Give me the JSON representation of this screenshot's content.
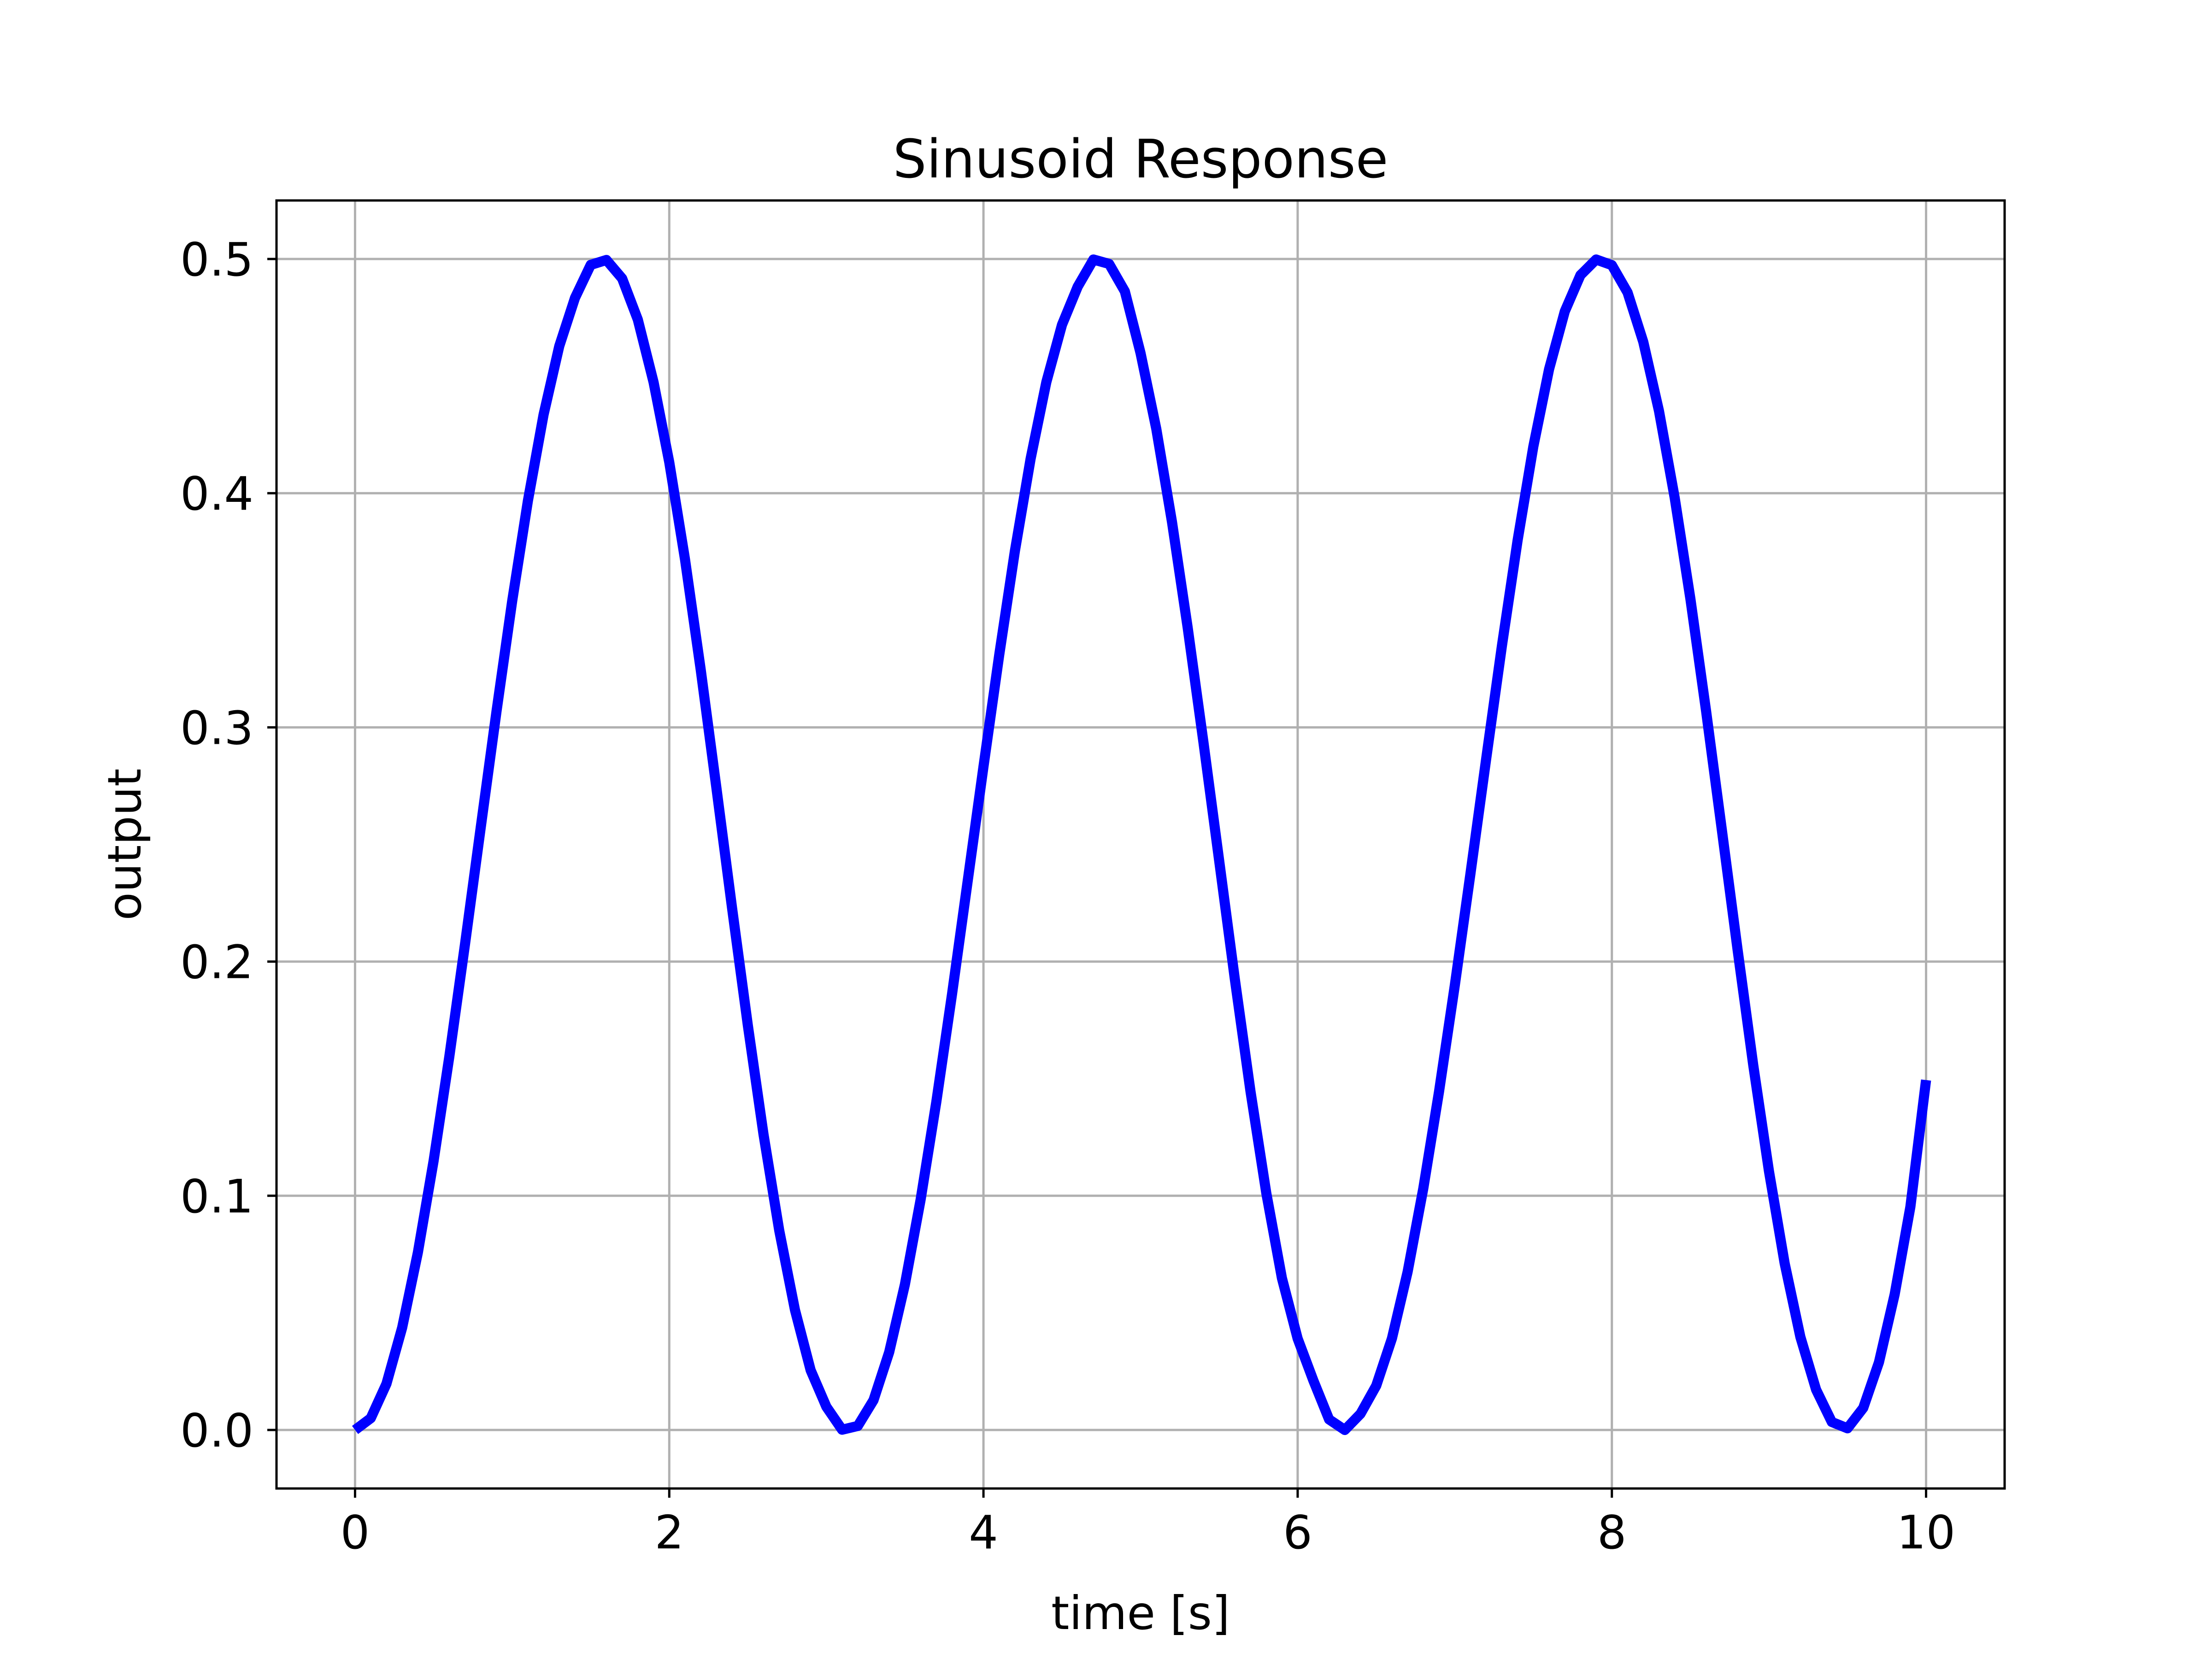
{
  "chart_data": {
    "type": "line",
    "title": "Sinusoid Response",
    "xlabel": "time [s]",
    "ylabel": "output",
    "xlim": [
      -0.5,
      10.5
    ],
    "ylim": [
      -0.025,
      0.525
    ],
    "xticks": [
      0,
      2,
      4,
      6,
      8,
      10
    ],
    "xtick_labels": [
      "0",
      "2",
      "4",
      "6",
      "8",
      "10"
    ],
    "yticks": [
      0.0,
      0.1,
      0.2,
      0.3,
      0.4,
      0.5
    ],
    "ytick_labels": [
      "0.0",
      "0.1",
      "0.2",
      "0.3",
      "0.4",
      "0.5"
    ],
    "grid": true,
    "series": [
      {
        "color": "#0000ff",
        "x": [
          0.0,
          0.1,
          0.2,
          0.3,
          0.4,
          0.5,
          0.6,
          0.7,
          0.8,
          0.9,
          1.0,
          1.1,
          1.2,
          1.3,
          1.4,
          1.5,
          1.6,
          1.7,
          1.8,
          1.9,
          2.0,
          2.1,
          2.2,
          2.3,
          2.4,
          2.5,
          2.6,
          2.7,
          2.8,
          2.9,
          3.0,
          3.1,
          3.2,
          3.3,
          3.4,
          3.5,
          3.6,
          3.7,
          3.8,
          3.9,
          4.0,
          4.1,
          4.2,
          4.3,
          4.4,
          4.5,
          4.6,
          4.7,
          4.8,
          4.9,
          5.0,
          5.1,
          5.2,
          5.3,
          5.4,
          5.5,
          5.6,
          5.7,
          5.8,
          5.9,
          6.0,
          6.1,
          6.2,
          6.3,
          6.4,
          6.5,
          6.6,
          6.7,
          6.8,
          6.9,
          7.0,
          7.1,
          7.2,
          7.3,
          7.4,
          7.5,
          7.6,
          7.7,
          7.8,
          7.9,
          8.0,
          8.1,
          8.2,
          8.3,
          8.4,
          8.5,
          8.6,
          8.7,
          8.8,
          8.9,
          9.0,
          9.1,
          9.2,
          9.3,
          9.4,
          9.5,
          9.6,
          9.7,
          9.8,
          9.9,
          10.0
        ],
        "y": [
          0.0,
          0.005,
          0.0197,
          0.0437,
          0.0758,
          0.1149,
          0.1594,
          0.2075,
          0.2573,
          0.3067,
          0.3539,
          0.3967,
          0.4335,
          0.4628,
          0.4834,
          0.4975,
          0.4996,
          0.4917,
          0.4741,
          0.4474,
          0.4132,
          0.3718,
          0.3247,
          0.2743,
          0.2228,
          0.1729,
          0.1262,
          0.0852,
          0.0513,
          0.0255,
          0.0099,
          0.0001,
          0.0017,
          0.0127,
          0.0332,
          0.0621,
          0.0983,
          0.1401,
          0.1861,
          0.2346,
          0.2832,
          0.3308,
          0.3753,
          0.4147,
          0.4474,
          0.4719,
          0.4882,
          0.4998,
          0.4979,
          0.4862,
          0.4598,
          0.4275,
          0.3877,
          0.3425,
          0.2937,
          0.2432,
          0.1926,
          0.1445,
          0.1013,
          0.0648,
          0.039,
          0.0211,
          0.0045,
          0.0,
          0.0069,
          0.0189,
          0.0391,
          0.0675,
          0.1032,
          0.1445,
          0.1897,
          0.2376,
          0.2866,
          0.3348,
          0.3799,
          0.4199,
          0.4529,
          0.4776,
          0.4931,
          0.4998,
          0.4974,
          0.4857,
          0.4646,
          0.4351,
          0.398,
          0.3548,
          0.3068,
          0.2562,
          0.2051,
          0.1558,
          0.1105,
          0.0711,
          0.0397,
          0.0172,
          0.0034,
          0.0007,
          0.0094,
          0.0289,
          0.0579,
          0.0953,
          0.1494
        ]
      }
    ]
  }
}
